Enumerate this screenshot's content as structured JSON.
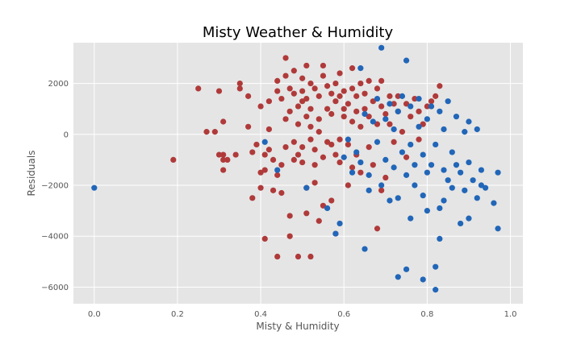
{
  "chart_data": {
    "type": "scatter",
    "title": "Misty Weather & Humidity",
    "xlabel": "Misty & Humidity",
    "ylabel": "Residuals",
    "xlim": [
      -0.05,
      1.03
    ],
    "ylim": [
      -6650,
      3600
    ],
    "xticks": [
      "0.0",
      "0.2",
      "0.4",
      "0.6",
      "0.8",
      "1.0"
    ],
    "xtick_values": [
      0.0,
      0.2,
      0.4,
      0.6,
      0.8,
      1.0
    ],
    "yticks": [
      "−6000",
      "−4000",
      "−2000",
      "0",
      "2000"
    ],
    "ytick_values": [
      -6000,
      -4000,
      -2000,
      0,
      2000
    ],
    "grid": true,
    "legend": "none",
    "colors": {
      "red": "#b03a3a",
      "blue": "#2166b8",
      "background": "#e5e5e5",
      "grid": "#ffffff"
    },
    "series": [
      {
        "color": "red",
        "points": [
          [
            0.19,
            -1000
          ],
          [
            0.25,
            1800
          ],
          [
            0.27,
            100
          ],
          [
            0.29,
            100
          ],
          [
            0.3,
            1700
          ],
          [
            0.3,
            -800
          ],
          [
            0.31,
            -1000
          ],
          [
            0.31,
            -1400
          ],
          [
            0.31,
            500
          ],
          [
            0.32,
            -1000
          ],
          [
            0.31,
            -800
          ],
          [
            0.34,
            -800
          ],
          [
            0.35,
            2000
          ],
          [
            0.35,
            1800
          ],
          [
            0.37,
            1500
          ],
          [
            0.37,
            300
          ],
          [
            0.38,
            -700
          ],
          [
            0.38,
            -2500
          ],
          [
            0.39,
            -400
          ],
          [
            0.4,
            -2100
          ],
          [
            0.4,
            1100
          ],
          [
            0.4,
            -1500
          ],
          [
            0.41,
            -4100
          ],
          [
            0.41,
            -1400
          ],
          [
            0.41,
            -800
          ],
          [
            0.42,
            -600
          ],
          [
            0.42,
            1300
          ],
          [
            0.42,
            200
          ],
          [
            0.43,
            -2200
          ],
          [
            0.43,
            -1000
          ],
          [
            0.44,
            1700
          ],
          [
            0.44,
            2100
          ],
          [
            0.44,
            -1600
          ],
          [
            0.44,
            -4800
          ],
          [
            0.45,
            -1200
          ],
          [
            0.45,
            -2300
          ],
          [
            0.45,
            1400
          ],
          [
            0.46,
            3000
          ],
          [
            0.46,
            -500
          ],
          [
            0.46,
            600
          ],
          [
            0.46,
            2300
          ],
          [
            0.47,
            -3200
          ],
          [
            0.47,
            -4000
          ],
          [
            0.47,
            900
          ],
          [
            0.47,
            1800
          ],
          [
            0.48,
            -300
          ],
          [
            0.48,
            1600
          ],
          [
            0.48,
            -1000
          ],
          [
            0.48,
            2500
          ],
          [
            0.49,
            -4800
          ],
          [
            0.49,
            400
          ],
          [
            0.49,
            -800
          ],
          [
            0.49,
            1100
          ],
          [
            0.5,
            2200
          ],
          [
            0.5,
            1700
          ],
          [
            0.5,
            1300
          ],
          [
            0.5,
            -500
          ],
          [
            0.5,
            -1100
          ],
          [
            0.51,
            700
          ],
          [
            0.51,
            2700
          ],
          [
            0.51,
            -3100
          ],
          [
            0.51,
            -2100
          ],
          [
            0.51,
            1400
          ],
          [
            0.52,
            -4800
          ],
          [
            0.52,
            300
          ],
          [
            0.52,
            -200
          ],
          [
            0.52,
            1000
          ],
          [
            0.52,
            2000
          ],
          [
            0.53,
            1800
          ],
          [
            0.53,
            -1900
          ],
          [
            0.53,
            -1200
          ],
          [
            0.53,
            -600
          ],
          [
            0.54,
            600
          ],
          [
            0.54,
            100
          ],
          [
            0.54,
            -3400
          ],
          [
            0.54,
            1500
          ],
          [
            0.55,
            2700
          ],
          [
            0.55,
            -2800
          ],
          [
            0.55,
            -900
          ],
          [
            0.55,
            2300
          ],
          [
            0.56,
            -300
          ],
          [
            0.56,
            1000
          ],
          [
            0.56,
            1900
          ],
          [
            0.57,
            1600
          ],
          [
            0.57,
            -2600
          ],
          [
            0.57,
            -400
          ],
          [
            0.57,
            800
          ],
          [
            0.58,
            -3900
          ],
          [
            0.58,
            2000
          ],
          [
            0.58,
            1300
          ],
          [
            0.58,
            -800
          ],
          [
            0.59,
            2400
          ],
          [
            0.59,
            1500
          ],
          [
            0.59,
            -1100
          ],
          [
            0.59,
            -200
          ],
          [
            0.6,
            1000
          ],
          [
            0.6,
            1700
          ],
          [
            0.6,
            700
          ],
          [
            0.61,
            -2000
          ],
          [
            0.61,
            1200
          ],
          [
            0.61,
            -400
          ],
          [
            0.62,
            2600
          ],
          [
            0.62,
            1800
          ],
          [
            0.62,
            500
          ],
          [
            0.62,
            -1300
          ],
          [
            0.63,
            1500
          ],
          [
            0.63,
            900
          ],
          [
            0.63,
            -800
          ],
          [
            0.64,
            2000
          ],
          [
            0.64,
            300
          ],
          [
            0.64,
            -1500
          ],
          [
            0.65,
            1000
          ],
          [
            0.65,
            1600
          ],
          [
            0.66,
            700
          ],
          [
            0.66,
            -500
          ],
          [
            0.66,
            2100
          ],
          [
            0.67,
            1300
          ],
          [
            0.67,
            -1200
          ],
          [
            0.68,
            -3700
          ],
          [
            0.68,
            1800
          ],
          [
            0.68,
            400
          ],
          [
            0.69,
            -2200
          ],
          [
            0.69,
            1100
          ],
          [
            0.69,
            2100
          ],
          [
            0.7,
            800
          ],
          [
            0.7,
            -1700
          ],
          [
            0.71,
            1500
          ],
          [
            0.71,
            400
          ],
          [
            0.72,
            1200
          ],
          [
            0.72,
            -300
          ],
          [
            0.73,
            900
          ],
          [
            0.73,
            1500
          ],
          [
            0.74,
            100
          ],
          [
            0.75,
            1200
          ],
          [
            0.75,
            -900
          ],
          [
            0.76,
            700
          ],
          [
            0.77,
            1400
          ],
          [
            0.78,
            900
          ],
          [
            0.78,
            -200
          ],
          [
            0.79,
            400
          ],
          [
            0.8,
            1100
          ],
          [
            0.81,
            1300
          ],
          [
            0.82,
            1500
          ],
          [
            0.83,
            1900
          ]
        ]
      },
      {
        "color": "blue",
        "points": [
          [
            0.0,
            -2100
          ],
          [
            0.41,
            -300
          ],
          [
            0.44,
            -1400
          ],
          [
            0.51,
            -2100
          ],
          [
            0.56,
            -2900
          ],
          [
            0.58,
            -3900
          ],
          [
            0.59,
            -3500
          ],
          [
            0.6,
            -900
          ],
          [
            0.61,
            -200
          ],
          [
            0.62,
            -1500
          ],
          [
            0.63,
            -700
          ],
          [
            0.64,
            2600
          ],
          [
            0.64,
            -1100
          ],
          [
            0.65,
            -4500
          ],
          [
            0.65,
            800
          ],
          [
            0.66,
            -2200
          ],
          [
            0.66,
            -1600
          ],
          [
            0.67,
            500
          ],
          [
            0.68,
            -300
          ],
          [
            0.68,
            1400
          ],
          [
            0.69,
            3400
          ],
          [
            0.69,
            -2000
          ],
          [
            0.7,
            -1000
          ],
          [
            0.7,
            600
          ],
          [
            0.71,
            -2600
          ],
          [
            0.71,
            1200
          ],
          [
            0.72,
            -1300
          ],
          [
            0.72,
            200
          ],
          [
            0.73,
            -5600
          ],
          [
            0.73,
            -2500
          ],
          [
            0.73,
            900
          ],
          [
            0.74,
            -700
          ],
          [
            0.74,
            1500
          ],
          [
            0.75,
            -5300
          ],
          [
            0.75,
            -1600
          ],
          [
            0.75,
            2900
          ],
          [
            0.76,
            -3300
          ],
          [
            0.76,
            -400
          ],
          [
            0.76,
            1100
          ],
          [
            0.77,
            -1200
          ],
          [
            0.77,
            -2000
          ],
          [
            0.78,
            300
          ],
          [
            0.78,
            1400
          ],
          [
            0.79,
            -5700
          ],
          [
            0.79,
            -2400
          ],
          [
            0.79,
            -800
          ],
          [
            0.8,
            -3000
          ],
          [
            0.8,
            600
          ],
          [
            0.8,
            -1500
          ],
          [
            0.81,
            1100
          ],
          [
            0.81,
            -1200
          ],
          [
            0.82,
            -6100
          ],
          [
            0.82,
            -5200
          ],
          [
            0.82,
            -400
          ],
          [
            0.83,
            -4100
          ],
          [
            0.83,
            -2900
          ],
          [
            0.83,
            900
          ],
          [
            0.84,
            -1400
          ],
          [
            0.84,
            -2600
          ],
          [
            0.84,
            200
          ],
          [
            0.85,
            -1800
          ],
          [
            0.85,
            1300
          ],
          [
            0.86,
            -700
          ],
          [
            0.86,
            -2100
          ],
          [
            0.87,
            700
          ],
          [
            0.87,
            -1200
          ],
          [
            0.88,
            -3500
          ],
          [
            0.88,
            -1500
          ],
          [
            0.89,
            100
          ],
          [
            0.89,
            -2200
          ],
          [
            0.9,
            -1100
          ],
          [
            0.9,
            -3300
          ],
          [
            0.9,
            500
          ],
          [
            0.91,
            -1800
          ],
          [
            0.92,
            -2500
          ],
          [
            0.92,
            200
          ],
          [
            0.93,
            -1400
          ],
          [
            0.93,
            -2000
          ],
          [
            0.94,
            -2100
          ],
          [
            0.96,
            -2700
          ],
          [
            0.97,
            -3700
          ],
          [
            0.97,
            -1500
          ]
        ]
      }
    ]
  }
}
